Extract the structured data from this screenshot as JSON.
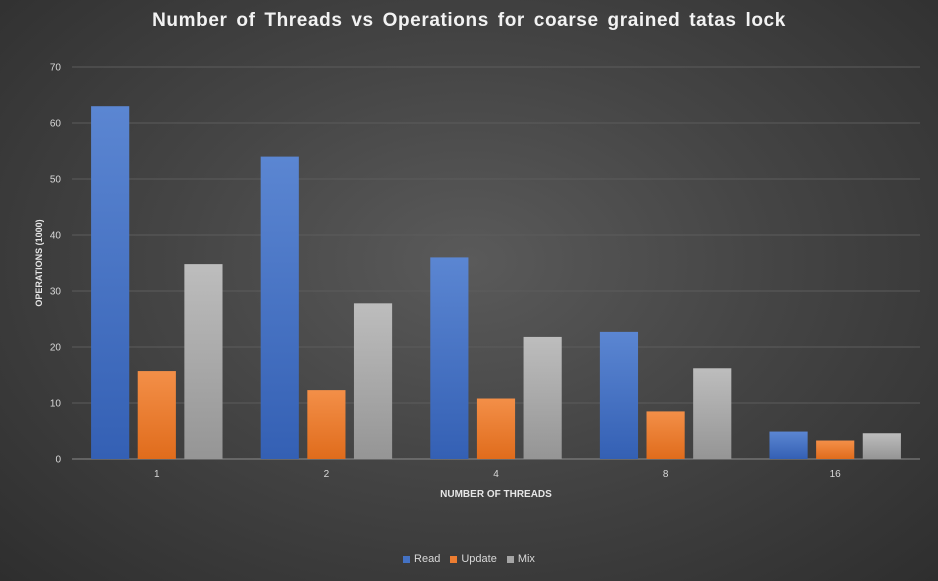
{
  "chart_data": {
    "type": "bar",
    "title": "Number of Threads vs Operations for coarse grained tatas lock",
    "xlabel": "NUMBER OF THREADS",
    "ylabel": "OPERATIONS (1000)",
    "categories": [
      "1",
      "2",
      "4",
      "8",
      "16"
    ],
    "ylim": [
      0,
      70
    ],
    "yticks": [
      "0",
      "10",
      "20",
      "30",
      "40",
      "50",
      "60",
      "70"
    ],
    "grid": true,
    "legend_position": "bottom",
    "series": [
      {
        "name": "Read",
        "color": "#4472c4",
        "values": [
          63,
          54,
          36,
          22.7,
          4.9
        ]
      },
      {
        "name": "Update",
        "color": "#ed7d31",
        "values": [
          15.7,
          12.3,
          10.8,
          8.5,
          3.3
        ]
      },
      {
        "name": "Mix",
        "color": "#a5a5a5",
        "values": [
          34.8,
          27.8,
          21.8,
          16.2,
          4.6
        ]
      }
    ]
  }
}
